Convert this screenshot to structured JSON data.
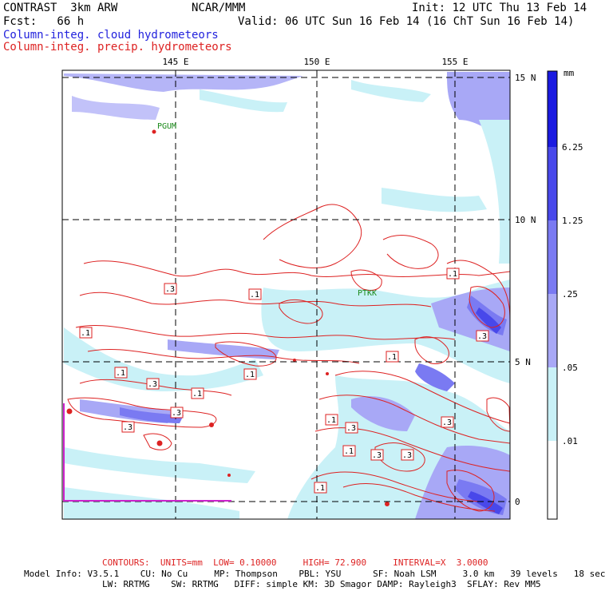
{
  "header": {
    "model": "CONTRAST  3km ARW",
    "org": "NCAR/MMM",
    "init": "Init: 12 UTC Thu 13 Feb 14",
    "fcst": "Fcst:   66 h",
    "valid": "Valid: 06 UTC Sun 16 Feb 14 (16 ChT Sun 16 Feb 14)",
    "field1": "Column-integ. cloud hydrometeors",
    "field2": "Column-integ. precip. hydrometeors"
  },
  "axes": {
    "lon_labels": [
      "145 E",
      "150 E",
      "155 E"
    ],
    "lat_labels": [
      "15 N",
      "10 N",
      "5 N",
      "0"
    ]
  },
  "stations": [
    "PGUM",
    "PTKK"
  ],
  "contour_labels": [
    ".3",
    ".1",
    ".1",
    ".1",
    ".3",
    ".1",
    ".1",
    ".3",
    ".1",
    ".3",
    ".1",
    ".3",
    ".3",
    ".1",
    ".3",
    ".1",
    ".3",
    ".3",
    ".1",
    ".3",
    ".3"
  ],
  "colorbar": {
    "unit": "mm",
    "levels": [
      "6.25",
      "1.25",
      ".25",
      ".05",
      ".01"
    ],
    "colors": [
      "#1a1ae0",
      "#4848ea",
      "#7a7af2",
      "#a8a8f6",
      "#c9f1f7",
      "#ffffff"
    ]
  },
  "footer": {
    "contours": "CONTOURS:  UNITS=mm  LOW= 0.10000     HIGH= 72.900     INTERVAL=X  3.0000",
    "model_info_1": "Model Info: V3.5.1    CU: No Cu     MP: Thompson    PBL: YSU      SF: Noah LSM     3.0 km   39 levels   18 sec",
    "model_info_2": "LW: RRTMG    SW: RRTMG   DIFF: simple KM: 3D Smagor DAMP: Rayleigh3  SFLAY: Rev MM5"
  }
}
